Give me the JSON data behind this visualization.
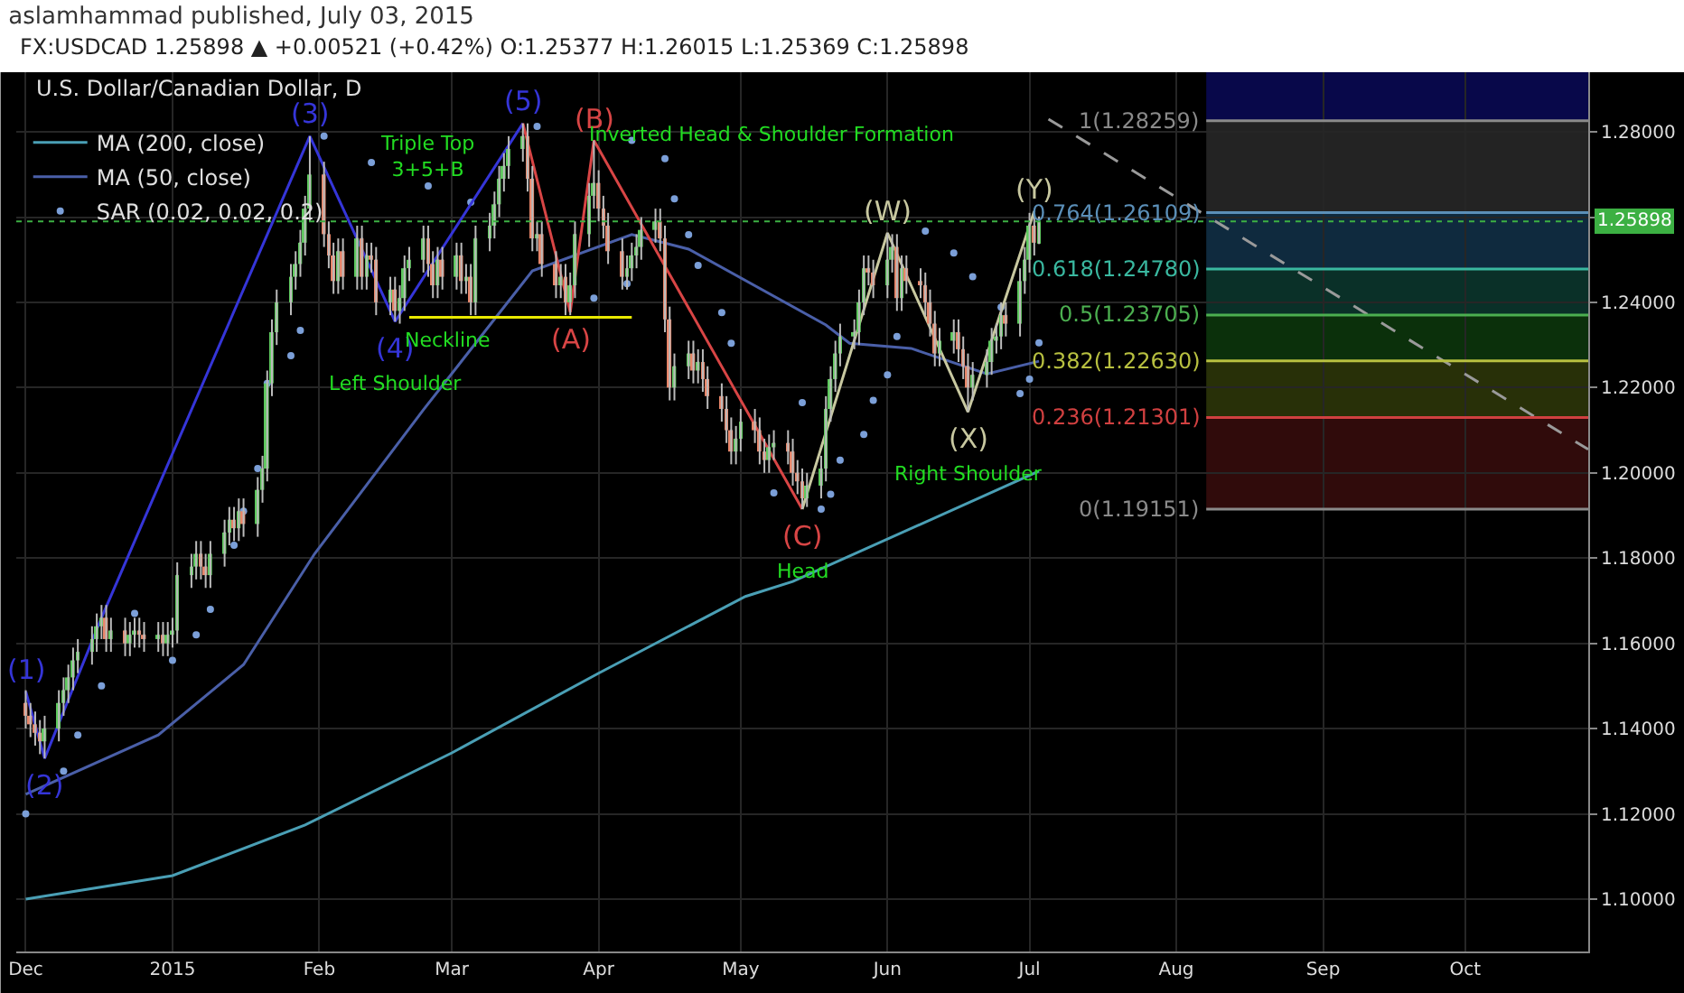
{
  "chart_data": {
    "type": "candlestick",
    "title": "aslamhammad published, July 03, 2015",
    "subtitle": "FX:USDCAD 1.25898 ▲ +0.00521 (+0.42%) O:1.25377 H:1.26015 L:1.25369 C:1.25898",
    "x": [
      "2014-12-01",
      "2014-12-02",
      "2014-12-03",
      "2014-12-04",
      "2014-12-05",
      "2014-12-08",
      "2014-12-09",
      "2014-12-10",
      "2014-12-11",
      "2014-12-12",
      "2014-12-15",
      "2014-12-16",
      "2014-12-17",
      "2014-12-18",
      "2014-12-19",
      "2014-12-22",
      "2014-12-23",
      "2014-12-24",
      "2014-12-25",
      "2014-12-26",
      "2014-12-29",
      "2014-12-30",
      "2014-12-31",
      "2015-01-01",
      "2015-01-02",
      "2015-01-05",
      "2015-01-06",
      "2015-01-07",
      "2015-01-08",
      "2015-01-09",
      "2015-01-12",
      "2015-01-13",
      "2015-01-14",
      "2015-01-15",
      "2015-01-16",
      "2015-01-19",
      "2015-01-20",
      "2015-01-21",
      "2015-01-22",
      "2015-01-23",
      "2015-01-26",
      "2015-01-27",
      "2015-01-28",
      "2015-01-29",
      "2015-01-30",
      "2015-02-02",
      "2015-02-03",
      "2015-02-04",
      "2015-02-05",
      "2015-02-06",
      "2015-02-09",
      "2015-02-10",
      "2015-02-11",
      "2015-02-12",
      "2015-02-13",
      "2015-02-16",
      "2015-02-17",
      "2015-02-18",
      "2015-02-19",
      "2015-02-20",
      "2015-02-23",
      "2015-02-24",
      "2015-02-25",
      "2015-02-26",
      "2015-02-27",
      "2015-03-02",
      "2015-03-03",
      "2015-03-04",
      "2015-03-05",
      "2015-03-06",
      "2015-03-09",
      "2015-03-10",
      "2015-03-11",
      "2015-03-12",
      "2015-03-13",
      "2015-03-16",
      "2015-03-17",
      "2015-03-18",
      "2015-03-19",
      "2015-03-20",
      "2015-03-23",
      "2015-03-24",
      "2015-03-25",
      "2015-03-26",
      "2015-03-27",
      "2015-03-30",
      "2015-03-31",
      "2015-04-01",
      "2015-04-02",
      "2015-04-03",
      "2015-04-06",
      "2015-04-07",
      "2015-04-08",
      "2015-04-09",
      "2015-04-10",
      "2015-04-13",
      "2015-04-14",
      "2015-04-15",
      "2015-04-16",
      "2015-04-17",
      "2015-04-20",
      "2015-04-21",
      "2015-04-22",
      "2015-04-23",
      "2015-04-24",
      "2015-04-27",
      "2015-04-28",
      "2015-04-29",
      "2015-04-30",
      "2015-05-01",
      "2015-05-04",
      "2015-05-05",
      "2015-05-06",
      "2015-05-07",
      "2015-05-08",
      "2015-05-11",
      "2015-05-12",
      "2015-05-13",
      "2015-05-14",
      "2015-05-15",
      "2015-05-18",
      "2015-05-19",
      "2015-05-20",
      "2015-05-21",
      "2015-05-22",
      "2015-05-25",
      "2015-05-26",
      "2015-05-27",
      "2015-05-28",
      "2015-05-29",
      "2015-06-01",
      "2015-06-02",
      "2015-06-03",
      "2015-06-04",
      "2015-06-05",
      "2015-06-08",
      "2015-06-09",
      "2015-06-10",
      "2015-06-11",
      "2015-06-12",
      "2015-06-15",
      "2015-06-16",
      "2015-06-17",
      "2015-06-18",
      "2015-06-19",
      "2015-06-22",
      "2015-06-23",
      "2015-06-24",
      "2015-06-25",
      "2015-06-26",
      "2015-06-29",
      "2015-06-30",
      "2015-07-01",
      "2015-07-02",
      "2015-07-03"
    ],
    "ohlc": [
      [
        1.146,
        1.149,
        1.14,
        1.143
      ],
      [
        1.143,
        1.146,
        1.138,
        1.141
      ],
      [
        1.141,
        1.144,
        1.136,
        1.139
      ],
      [
        1.139,
        1.142,
        1.134,
        1.137
      ],
      [
        1.137,
        1.143,
        1.133,
        1.14
      ],
      [
        1.14,
        1.149,
        1.137,
        1.146
      ],
      [
        1.146,
        1.152,
        1.143,
        1.149
      ],
      [
        1.149,
        1.155,
        1.146,
        1.152
      ],
      [
        1.152,
        1.159,
        1.149,
        1.156
      ],
      [
        1.156,
        1.161,
        1.153,
        1.158
      ],
      [
        1.158,
        1.164,
        1.155,
        1.161
      ],
      [
        1.161,
        1.167,
        1.158,
        1.164
      ],
      [
        1.164,
        1.169,
        1.161,
        1.166
      ],
      [
        1.166,
        1.169,
        1.158,
        1.161
      ],
      [
        1.161,
        1.166,
        1.158,
        1.163
      ],
      [
        1.163,
        1.166,
        1.157,
        1.16
      ],
      [
        1.16,
        1.165,
        1.157,
        1.162
      ],
      [
        1.162,
        1.166,
        1.159,
        1.163
      ],
      [
        1.163,
        1.166,
        1.159,
        1.162
      ],
      [
        1.162,
        1.165,
        1.158,
        1.161
      ],
      [
        1.161,
        1.165,
        1.158,
        1.162
      ],
      [
        1.162,
        1.165,
        1.157,
        1.16
      ],
      [
        1.16,
        1.165,
        1.157,
        1.162
      ],
      [
        1.162,
        1.166,
        1.159,
        1.163
      ],
      [
        1.163,
        1.179,
        1.16,
        1.176
      ],
      [
        1.176,
        1.181,
        1.173,
        1.178
      ],
      [
        1.178,
        1.184,
        1.175,
        1.181
      ],
      [
        1.181,
        1.184,
        1.175,
        1.178
      ],
      [
        1.178,
        1.181,
        1.173,
        1.176
      ],
      [
        1.176,
        1.184,
        1.173,
        1.181
      ],
      [
        1.181,
        1.189,
        1.178,
        1.186
      ],
      [
        1.186,
        1.192,
        1.183,
        1.189
      ],
      [
        1.189,
        1.192,
        1.184,
        1.187
      ],
      [
        1.187,
        1.194,
        1.184,
        1.191
      ],
      [
        1.191,
        1.194,
        1.185,
        1.188
      ],
      [
        1.188,
        1.199,
        1.185,
        1.196
      ],
      [
        1.196,
        1.204,
        1.193,
        1.201
      ],
      [
        1.201,
        1.224,
        1.198,
        1.221
      ],
      [
        1.221,
        1.236,
        1.218,
        1.233
      ],
      [
        1.233,
        1.243,
        1.23,
        1.24
      ],
      [
        1.24,
        1.249,
        1.237,
        1.246
      ],
      [
        1.246,
        1.252,
        1.243,
        1.249
      ],
      [
        1.249,
        1.257,
        1.246,
        1.254
      ],
      [
        1.254,
        1.265,
        1.251,
        1.262
      ],
      [
        1.262,
        1.279,
        1.259,
        1.27
      ],
      [
        1.27,
        1.273,
        1.253,
        1.256
      ],
      [
        1.256,
        1.259,
        1.248,
        1.251
      ],
      [
        1.251,
        1.254,
        1.242,
        1.245
      ],
      [
        1.245,
        1.255,
        1.242,
        1.252
      ],
      [
        1.252,
        1.255,
        1.243,
        1.246
      ],
      [
        1.246,
        1.258,
        1.243,
        1.255
      ],
      [
        1.255,
        1.258,
        1.243,
        1.246
      ],
      [
        1.246,
        1.254,
        1.243,
        1.251
      ],
      [
        1.251,
        1.254,
        1.247,
        1.25
      ],
      [
        1.25,
        1.253,
        1.237,
        1.24
      ],
      [
        1.24,
        1.246,
        1.237,
        1.243
      ],
      [
        1.243,
        1.246,
        1.2355,
        1.238
      ],
      [
        1.238,
        1.244,
        1.235,
        1.241
      ],
      [
        1.241,
        1.251,
        1.238,
        1.248
      ],
      [
        1.248,
        1.253,
        1.245,
        1.25
      ],
      [
        1.25,
        1.258,
        1.247,
        1.255
      ],
      [
        1.255,
        1.258,
        1.246,
        1.249
      ],
      [
        1.249,
        1.252,
        1.241,
        1.244
      ],
      [
        1.244,
        1.253,
        1.241,
        1.25
      ],
      [
        1.25,
        1.253,
        1.243,
        1.246
      ],
      [
        1.246,
        1.254,
        1.243,
        1.251
      ],
      [
        1.251,
        1.254,
        1.242,
        1.245
      ],
      [
        1.245,
        1.249,
        1.242,
        1.246
      ],
      [
        1.246,
        1.249,
        1.237,
        1.24
      ],
      [
        1.24,
        1.258,
        1.237,
        1.255
      ],
      [
        1.255,
        1.261,
        1.252,
        1.258
      ],
      [
        1.258,
        1.266,
        1.255,
        1.263
      ],
      [
        1.263,
        1.272,
        1.26,
        1.269
      ],
      [
        1.269,
        1.275,
        1.266,
        1.272
      ],
      [
        1.272,
        1.279,
        1.269,
        1.276
      ],
      [
        1.276,
        1.282,
        1.273,
        1.279
      ],
      [
        1.279,
        1.282,
        1.266,
        1.269
      ],
      [
        1.269,
        1.272,
        1.252,
        1.255
      ],
      [
        1.255,
        1.259,
        1.252,
        1.256
      ],
      [
        1.256,
        1.259,
        1.246,
        1.249
      ],
      [
        1.249,
        1.252,
        1.241,
        1.244
      ],
      [
        1.244,
        1.249,
        1.241,
        1.246
      ],
      [
        1.246,
        1.249,
        1.237,
        1.24
      ],
      [
        1.24,
        1.247,
        1.237,
        1.244
      ],
      [
        1.244,
        1.259,
        1.241,
        1.256
      ],
      [
        1.256,
        1.268,
        1.253,
        1.265
      ],
      [
        1.265,
        1.278,
        1.262,
        1.268
      ],
      [
        1.268,
        1.271,
        1.259,
        1.262
      ],
      [
        1.262,
        1.265,
        1.255,
        1.258
      ],
      [
        1.258,
        1.261,
        1.249,
        1.252
      ],
      [
        1.252,
        1.255,
        1.243,
        1.246
      ],
      [
        1.246,
        1.251,
        1.243,
        1.248
      ],
      [
        1.248,
        1.254,
        1.245,
        1.251
      ],
      [
        1.251,
        1.256,
        1.248,
        1.253
      ],
      [
        1.253,
        1.26,
        1.25,
        1.257
      ],
      [
        1.257,
        1.262,
        1.254,
        1.259
      ],
      [
        1.259,
        1.262,
        1.252,
        1.255
      ],
      [
        1.255,
        1.258,
        1.233,
        1.236
      ],
      [
        1.236,
        1.239,
        1.217,
        1.22
      ],
      [
        1.22,
        1.228,
        1.217,
        1.225
      ],
      [
        1.225,
        1.231,
        1.222,
        1.228
      ],
      [
        1.228,
        1.231,
        1.221,
        1.224
      ],
      [
        1.224,
        1.229,
        1.221,
        1.226
      ],
      [
        1.226,
        1.229,
        1.219,
        1.222
      ],
      [
        1.222,
        1.225,
        1.215,
        1.218
      ],
      [
        1.218,
        1.221,
        1.212,
        1.215
      ],
      [
        1.215,
        1.218,
        1.207,
        1.21
      ],
      [
        1.21,
        1.213,
        1.202,
        1.205
      ],
      [
        1.205,
        1.211,
        1.202,
        1.208
      ],
      [
        1.208,
        1.215,
        1.205,
        1.212
      ],
      [
        1.212,
        1.215,
        1.207,
        1.21
      ],
      [
        1.21,
        1.213,
        1.202,
        1.205
      ],
      [
        1.205,
        1.208,
        1.2,
        1.203
      ],
      [
        1.203,
        1.209,
        1.2,
        1.206
      ],
      [
        1.206,
        1.21,
        1.203,
        1.207
      ],
      [
        1.207,
        1.21,
        1.202,
        1.205
      ],
      [
        1.205,
        1.208,
        1.197,
        1.2
      ],
      [
        1.2,
        1.203,
        1.195,
        1.198
      ],
      [
        1.198,
        1.201,
        1.1915,
        1.194
      ],
      [
        1.194,
        1.2,
        1.192,
        1.197
      ],
      [
        1.197,
        1.204,
        1.194,
        1.201
      ],
      [
        1.201,
        1.218,
        1.198,
        1.215
      ],
      [
        1.215,
        1.225,
        1.212,
        1.222
      ],
      [
        1.222,
        1.231,
        1.219,
        1.228
      ],
      [
        1.228,
        1.235,
        1.225,
        1.232
      ],
      [
        1.232,
        1.236,
        1.229,
        1.233
      ],
      [
        1.233,
        1.243,
        1.23,
        1.24
      ],
      [
        1.24,
        1.251,
        1.237,
        1.248
      ],
      [
        1.248,
        1.251,
        1.244,
        1.247
      ],
      [
        1.247,
        1.25,
        1.241,
        1.244
      ],
      [
        1.244,
        1.2563,
        1.241,
        1.25
      ],
      [
        1.25,
        1.256,
        1.247,
        1.253
      ],
      [
        1.253,
        1.256,
        1.238,
        1.241
      ],
      [
        1.241,
        1.251,
        1.238,
        1.248
      ],
      [
        1.248,
        1.251,
        1.242,
        1.245
      ],
      [
        1.245,
        1.248,
        1.241,
        1.244
      ],
      [
        1.244,
        1.247,
        1.237,
        1.24
      ],
      [
        1.24,
        1.243,
        1.232,
        1.235
      ],
      [
        1.235,
        1.238,
        1.225,
        1.228
      ],
      [
        1.228,
        1.234,
        1.225,
        1.231
      ],
      [
        1.231,
        1.236,
        1.228,
        1.233
      ],
      [
        1.233,
        1.236,
        1.226,
        1.229
      ],
      [
        1.229,
        1.232,
        1.222,
        1.225
      ],
      [
        1.225,
        1.228,
        1.2143,
        1.22
      ],
      [
        1.22,
        1.226,
        1.217,
        1.223
      ],
      [
        1.223,
        1.229,
        1.22,
        1.226
      ],
      [
        1.226,
        1.234,
        1.223,
        1.231
      ],
      [
        1.231,
        1.235,
        1.228,
        1.232
      ],
      [
        1.232,
        1.24,
        1.229,
        1.237
      ],
      [
        1.237,
        1.24,
        1.232,
        1.235
      ],
      [
        1.235,
        1.248,
        1.232,
        1.245
      ],
      [
        1.245,
        1.253,
        1.242,
        1.25
      ],
      [
        1.25,
        1.261,
        1.247,
        1.258
      ],
      [
        1.258,
        1.2614,
        1.251,
        1.254
      ],
      [
        1.25377,
        1.26015,
        1.25369,
        1.25898
      ]
    ],
    "series": [
      {
        "type": "line",
        "name": "MA (200, close)",
        "color": "#4a9fb5",
        "x": [
          "2014-12-01",
          "2015-01-01",
          "2015-01-29",
          "2015-03-01",
          "2015-04-01",
          "2015-05-02",
          "2015-05-12",
          "2015-07-03"
        ],
        "values": [
          1.1,
          1.1055,
          1.1174,
          1.1343,
          1.153,
          1.171,
          1.1745,
          1.2004
        ]
      },
      {
        "type": "line",
        "name": "MA (50, close)",
        "color": "#4a5fa8",
        "x": [
          "2014-12-01",
          "2014-12-29",
          "2015-01-16",
          "2015-01-31",
          "2015-02-23",
          "2015-03-18",
          "2015-04-08",
          "2015-04-20",
          "2015-05-19",
          "2015-05-24",
          "2015-06-06",
          "2015-06-22",
          "2015-07-03"
        ],
        "values": [
          1.1246,
          1.1385,
          1.155,
          1.181,
          1.2148,
          1.2474,
          1.2559,
          1.2525,
          1.2347,
          1.2304,
          1.2292,
          1.2232,
          1.2262
        ]
      },
      {
        "type": "scatter",
        "name": "SAR (0.02, 0.02, 0.2)",
        "color": "#7b9fd8",
        "marker": "circle",
        "x": [
          "2014-12-01",
          "2014-12-09",
          "2014-12-12",
          "2014-12-17",
          "2014-12-24",
          "2015-01-01",
          "2015-01-06",
          "2015-01-09",
          "2015-01-14",
          "2015-01-16",
          "2015-01-19",
          "2015-01-21",
          "2015-01-26",
          "2015-01-28",
          "2015-02-02",
          "2015-02-12",
          "2015-02-24",
          "2015-03-05",
          "2015-03-19",
          "2015-03-31",
          "2015-04-07",
          "2015-04-08",
          "2015-04-15",
          "2015-04-17",
          "2015-04-20",
          "2015-04-22",
          "2015-04-27",
          "2015-04-29",
          "2015-05-08",
          "2015-05-14",
          "2015-05-18",
          "2015-05-20",
          "2015-05-22",
          "2015-05-27",
          "2015-05-29",
          "2015-06-01",
          "2015-06-03",
          "2015-06-09",
          "2015-06-15",
          "2015-06-19",
          "2015-06-25",
          "2015-06-29",
          "2015-07-01",
          "2015-07-03"
        ],
        "values": [
          1.12,
          1.13,
          1.1385,
          1.15,
          1.167,
          1.156,
          1.162,
          1.168,
          1.183,
          1.191,
          1.201,
          1.221,
          1.2275,
          1.2334,
          1.279,
          1.2728,
          1.2673,
          1.2635,
          1.2813,
          1.241,
          1.2444,
          1.278,
          1.2737,
          1.2643,
          1.2559,
          1.2487,
          1.2376,
          1.2304,
          1.1953,
          1.2165,
          1.1915,
          1.195,
          1.203,
          1.209,
          1.217,
          1.223,
          1.232,
          1.2567,
          1.2516,
          1.246,
          1.2389,
          1.2186,
          1.222,
          1.2305
        ]
      },
      {
        "type": "line",
        "color": "#3535d8",
        "x": [
          "2014-12-01",
          "2014-12-05",
          "2014-12-17",
          "2015-01-30",
          "2015-02-17",
          "2015-03-16"
        ],
        "values": [
          1.1487,
          1.133,
          1.166,
          1.279,
          1.2355,
          1.282
        ]
      },
      {
        "type": "line",
        "color": "#d84545",
        "x": [
          "2015-03-16",
          "2015-03-26",
          "2015-03-31",
          "2015-05-14"
        ],
        "values": [
          1.282,
          1.2377,
          1.278,
          1.1915
        ]
      },
      {
        "type": "line",
        "color": "#c8c8a0",
        "x": [
          "2015-05-14",
          "2015-06-01",
          "2015-06-18",
          "2015-07-02"
        ],
        "values": [
          1.1915,
          1.2563,
          1.2143,
          1.2614
        ]
      },
      {
        "type": "line",
        "color": "#e8e800",
        "x": [
          "2015-02-20",
          "2015-02-28",
          "2015-04-08"
        ],
        "values": [
          1.2365,
          1.2365,
          1.2365
        ]
      },
      {
        "type": "line",
        "color": "#9a9a9a",
        "line_style": "dashed",
        "x": [
          "2015-07-05",
          "2015-10-27"
        ],
        "values": [
          1.283,
          1.2055
        ]
      }
    ],
    "annotations": [
      "U.S. Dollar/Canadian Dollar, D",
      {
        "text": "(1)",
        "x": "2014-12-01",
        "y": 1.1487
      },
      {
        "text": "(2)",
        "x": "2014-12-05",
        "y": 1.133
      },
      {
        "text": "(3)",
        "x": "2015-01-30",
        "y": 1.279
      },
      {
        "text": "(4)",
        "x": "2015-02-17",
        "y": 1.2355
      },
      {
        "text": "(5)",
        "x": "2015-03-16",
        "y": 1.282
      },
      {
        "text": "(A)",
        "x": "2015-03-26",
        "y": 1.2377
      },
      {
        "text": "(B)",
        "x": "2015-03-31",
        "y": 1.278
      },
      {
        "text": "(C)",
        "x": "2015-05-14",
        "y": 1.1915
      },
      {
        "text": "(W)",
        "x": "2015-06-01",
        "y": 1.2563
      },
      {
        "text": "(X)",
        "x": "2015-06-18",
        "y": 1.2143
      },
      {
        "text": "(Y)",
        "x": "2015-07-02",
        "y": 1.2614
      },
      {
        "text": "Head",
        "x": "2015-05-14",
        "y": 1.1915
      },
      {
        "text": "Neckline",
        "x": "2015-02-28",
        "y": 1.2365
      },
      {
        "text": "Left Shoulder",
        "x": "2015-02-17",
        "y": 1.2355
      },
      {
        "text": "Right Shoulder",
        "x": "2015-06-18",
        "y": 1.2143
      },
      {
        "text": "Triple Top\n3+5+B",
        "x": "2015-02-24",
        "y": 1.2673
      },
      "Inverted Head & Shoulder Formation"
    ],
    "ref_lines": [
      {
        "axis": "y",
        "value": 1.28259,
        "label": "1(1.28259)",
        "color": "#8a8a8a"
      },
      {
        "axis": "y",
        "value": 1.26109,
        "label": "0.764(1.26109)",
        "color": "#5b8fb8"
      },
      {
        "axis": "y",
        "value": 1.2478,
        "label": "0.618(1.24780)",
        "color": "#3ab8a0"
      },
      {
        "axis": "y",
        "value": 1.23705,
        "label": "0.5(1.23705)",
        "color": "#4caf50"
      },
      {
        "axis": "y",
        "value": 1.2263,
        "label": "0.382(1.22630)",
        "color": "#b8c040"
      },
      {
        "axis": "y",
        "value": 1.21301,
        "label": "0.236(1.21301)",
        "color": "#d04040"
      },
      {
        "axis": "y",
        "value": 1.19151,
        "label": "0(1.19151)",
        "color": "#8a8a8a"
      },
      {
        "axis": "y",
        "value": 1.25898,
        "label": "1.25898",
        "color": "#3cb043",
        "line_style": "dotted"
      }
    ],
    "bands": [
      {
        "axis": "y",
        "from": 1.28259,
        "to": 1.294,
        "color": "#08084a"
      },
      {
        "axis": "y",
        "from": 1.26109,
        "to": 1.28259,
        "color": "#232323"
      },
      {
        "axis": "y",
        "from": 1.2478,
        "to": 1.26109,
        "color": "#0f2a3e"
      },
      {
        "axis": "y",
        "from": 1.23705,
        "to": 1.2478,
        "color": "#0a3028"
      },
      {
        "axis": "y",
        "from": 1.2263,
        "to": 1.23705,
        "color": "#0b300b"
      },
      {
        "axis": "y",
        "from": 1.21301,
        "to": 1.2263,
        "color": "#283008"
      },
      {
        "axis": "y",
        "from": 1.19151,
        "to": 1.21301,
        "color": "#300b0b"
      }
    ],
    "xlim": [
      "2014-11-29",
      "2015-10-27"
    ],
    "xticks": [
      {
        "value": "2014-12-01",
        "label": "Dec"
      },
      {
        "value": "2015-01-01",
        "label": "2015"
      },
      {
        "value": "2015-02-01",
        "label": "Feb"
      },
      {
        "value": "2015-03-01",
        "label": "Mar"
      },
      {
        "value": "2015-04-01",
        "label": "Apr"
      },
      {
        "value": "2015-05-01",
        "label": "May"
      },
      {
        "value": "2015-06-01",
        "label": "Jun"
      },
      {
        "value": "2015-07-01",
        "label": "Jul"
      },
      {
        "value": "2015-08-01",
        "label": "Aug"
      },
      {
        "value": "2015-09-01",
        "label": "Sep"
      },
      {
        "value": "2015-10-01",
        "label": "Oct"
      }
    ],
    "ylim": [
      1.0877,
      1.294
    ],
    "yticks": [
      {
        "value": 1.1,
        "label": "1.10000"
      },
      {
        "value": 1.12,
        "label": "1.12000"
      },
      {
        "value": 1.14,
        "label": "1.14000"
      },
      {
        "value": 1.16,
        "label": "1.16000"
      },
      {
        "value": 1.18,
        "label": "1.18000"
      },
      {
        "value": 1.2,
        "label": "1.20000"
      },
      {
        "value": 1.22,
        "label": "1.22000"
      },
      {
        "value": 1.24,
        "label": "1.24000"
      },
      {
        "value": 1.26,
        "label": null
      },
      {
        "value": 1.28,
        "label": "1.28000"
      }
    ],
    "grid": true,
    "legend": "top left"
  }
}
